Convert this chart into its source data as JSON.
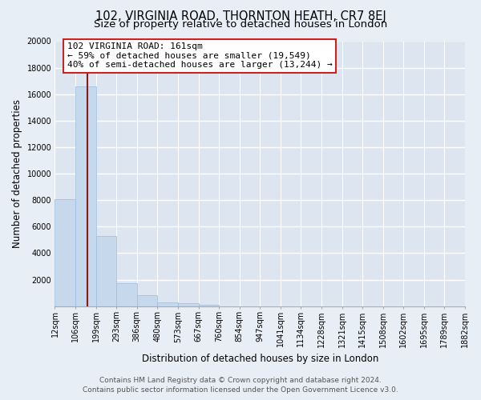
{
  "title": "102, VIRGINIA ROAD, THORNTON HEATH, CR7 8EJ",
  "subtitle": "Size of property relative to detached houses in London",
  "xlabel": "Distribution of detached houses by size in London",
  "ylabel": "Number of detached properties",
  "bar_values": [
    8100,
    16600,
    5300,
    1750,
    800,
    280,
    230,
    100,
    0,
    0,
    0,
    0,
    0,
    0,
    0,
    0,
    0,
    0,
    0,
    0
  ],
  "bar_labels": [
    "12sqm",
    "106sqm",
    "199sqm",
    "293sqm",
    "386sqm",
    "480sqm",
    "573sqm",
    "667sqm",
    "760sqm",
    "854sqm",
    "947sqm",
    "1041sqm",
    "1134sqm",
    "1228sqm",
    "1321sqm",
    "1415sqm",
    "1508sqm",
    "1602sqm",
    "1695sqm",
    "1789sqm",
    "1882sqm"
  ],
  "bar_color": "#c5d8ec",
  "bar_edge_color": "#9bbcd8",
  "vline_color": "#8b1a1a",
  "annotation_title": "102 VIRGINIA ROAD: 161sqm",
  "annotation_line1": "← 59% of detached houses are smaller (19,549)",
  "annotation_line2": "40% of semi-detached houses are larger (13,244) →",
  "annotation_box_facecolor": "#ffffff",
  "annotation_box_edgecolor": "#cc2222",
  "ylim": [
    0,
    20000
  ],
  "yticks": [
    0,
    2000,
    4000,
    6000,
    8000,
    10000,
    12000,
    14000,
    16000,
    18000,
    20000
  ],
  "background_color": "#e8eef5",
  "plot_bg_color": "#dde6f0",
  "grid_color": "#ffffff",
  "title_fontsize": 10.5,
  "subtitle_fontsize": 9.5,
  "axis_label_fontsize": 8.5,
  "tick_fontsize": 7,
  "annotation_fontsize": 8,
  "footer_fontsize": 6.5,
  "footer_line1": "Contains HM Land Registry data © Crown copyright and database right 2024.",
  "footer_line2": "Contains public sector information licensed under the Open Government Licence v3.0."
}
